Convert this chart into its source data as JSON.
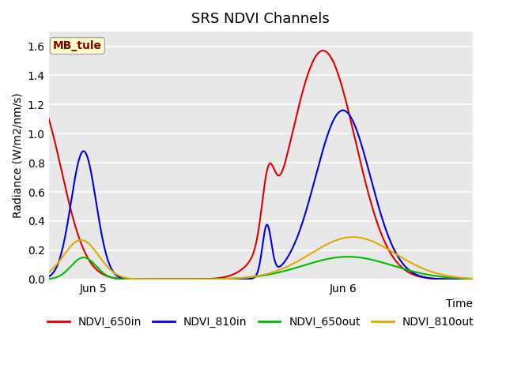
{
  "title": "SRS NDVI Channels",
  "xlabel": "Time",
  "ylabel": "Radiance (W/m2/nm/s)",
  "annotation": "MB_tule",
  "ylim": [
    0,
    1.7
  ],
  "yticks": [
    0.0,
    0.2,
    0.4,
    0.6,
    0.8,
    1.0,
    1.2,
    1.4,
    1.6
  ],
  "xtick_labels": [
    "Jun 5",
    "Jun 6"
  ],
  "xtick_positions": [
    0.18,
    1.18
  ],
  "xlim": [
    0,
    1.7
  ],
  "legend_labels": [
    "NDVI_650in",
    "NDVI_810in",
    "NDVI_650out",
    "NDVI_810out"
  ],
  "legend_colors": [
    "#dd0000",
    "#0000dd",
    "#00bb00",
    "#ddaa00"
  ],
  "line_colors": {
    "NDVI_650in": "#dd0000",
    "NDVI_810in": "#0000dd",
    "NDVI_650out": "#00bb00",
    "NDVI_810out": "#ddaa00"
  },
  "background_color": "#e8e8e8",
  "annotation_bg": "#ffffcc",
  "annotation_fg": "#880000"
}
